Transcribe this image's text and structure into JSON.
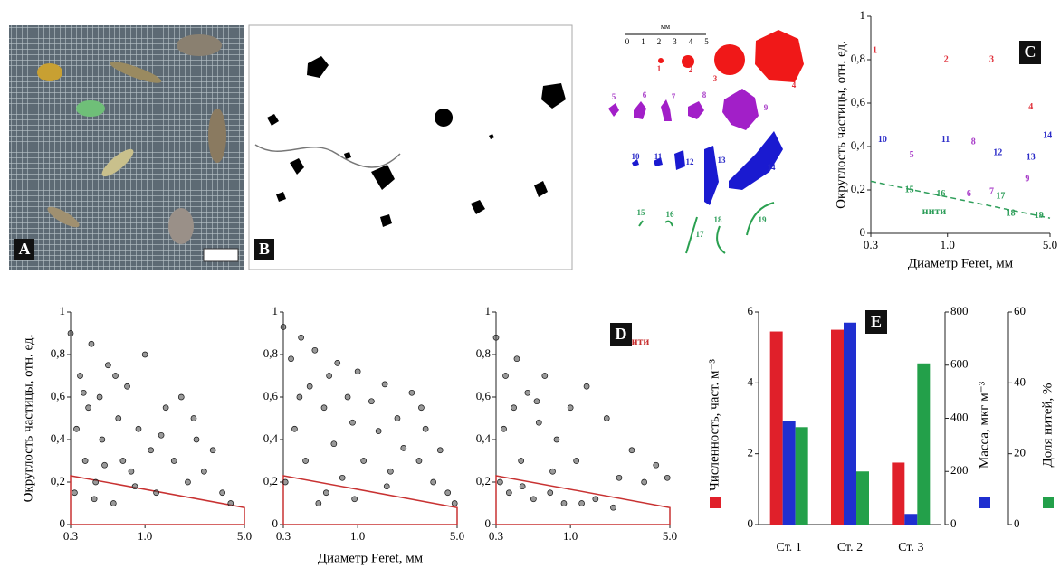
{
  "panels": {
    "photo": "A",
    "binary": "B"
  },
  "particles": {
    "scale_unit": "мм",
    "scale_ticks": [
      "0",
      "1",
      "2",
      "3",
      "4",
      "5"
    ],
    "labels": [
      "1",
      "2",
      "3",
      "4",
      "5",
      "6",
      "7",
      "8",
      "9",
      "10",
      "11",
      "12",
      "13",
      "14",
      "15",
      "16",
      "17",
      "18",
      "19"
    ]
  },
  "chart_data": [
    {
      "type": "scatter",
      "panel": "C",
      "ylabel": "Округлость частицы, отн. ед.",
      "xlabel": "Диаметр Feret, мм",
      "log_x": true,
      "xlim": [
        0.3,
        5
      ],
      "xticks": [
        0.3,
        {
          "value": 1,
          "label": "1.0"
        },
        {
          "value": 5,
          "label": "5.0"
        }
      ],
      "ylim": [
        0,
        1
      ],
      "yticks": [
        0,
        {
          "value": 0.2,
          "label": "0,2"
        },
        {
          "value": 0.4,
          "label": "0,4"
        },
        {
          "value": 0.6,
          "label": "0,6"
        },
        {
          "value": 0.8,
          "label": "0,8"
        },
        1
      ],
      "series": [
        {
          "color": "#e0303a",
          "labels": [
            "1",
            "2",
            "3",
            "4"
          ],
          "x": [
            0.32,
            0.98,
            2.0,
            3.7
          ],
          "y": [
            0.84,
            0.8,
            0.8,
            0.58
          ]
        },
        {
          "color": "#a83cc8",
          "labels": [
            "5",
            "6",
            "7",
            "8",
            "9"
          ],
          "x": [
            0.57,
            1.4,
            2.0,
            1.5,
            3.5
          ],
          "y": [
            0.36,
            0.18,
            0.19,
            0.42,
            0.25
          ]
        },
        {
          "color": "#2a2ac8",
          "labels": [
            "10",
            "11",
            "12",
            "13",
            "14"
          ],
          "x": [
            0.36,
            0.97,
            2.2,
            3.7,
            4.8
          ],
          "y": [
            0.43,
            0.43,
            0.37,
            0.35,
            0.45
          ]
        },
        {
          "color": "#2e9e5a",
          "labels": [
            "15",
            "16",
            "17",
            "18",
            "19"
          ],
          "x": [
            0.55,
            0.9,
            2.3,
            2.7,
            4.2
          ],
          "y": [
            0.2,
            0.18,
            0.17,
            0.09,
            0.08
          ]
        }
      ],
      "threshold": {
        "x": [
          0.3,
          5
        ],
        "y": [
          0.24,
          0.07
        ],
        "color": "#2e9e5a",
        "style": "dashed"
      },
      "annotation": {
        "text": "нити",
        "color": "#2e9e5a"
      }
    },
    {
      "type": "scatter",
      "ylabel": "Округлость частицы, отн. ед.",
      "log_x": true,
      "xlim": [
        0.3,
        5
      ],
      "xticks": [
        0.3,
        {
          "value": 1,
          "label": "1.0"
        },
        {
          "value": 5,
          "label": "5.0"
        }
      ],
      "ylim": [
        0,
        1
      ],
      "yticks": [
        0,
        {
          "value": 0.2,
          "label": "0,2"
        },
        {
          "value": 0.4,
          "label": "0,4"
        },
        {
          "value": 0.6,
          "label": "0,6"
        },
        {
          "value": 0.8,
          "label": "0,8"
        },
        1
      ],
      "series": [
        {
          "color": "#555555",
          "x": [
            0.3,
            0.32,
            0.35,
            0.38,
            0.4,
            0.42,
            0.45,
            0.48,
            0.5,
            0.55,
            0.6,
            0.65,
            0.7,
            0.75,
            0.8,
            0.9,
            1.0,
            1.1,
            1.2,
            1.4,
            1.6,
            1.8,
            2.0,
            2.3,
            2.6,
            3.0,
            3.5,
            4.0,
            0.33,
            0.37,
            0.44,
            0.52,
            0.62,
            0.85,
            1.3,
            2.2
          ],
          "y": [
            0.9,
            0.15,
            0.7,
            0.3,
            0.55,
            0.85,
            0.2,
            0.6,
            0.4,
            0.75,
            0.1,
            0.5,
            0.3,
            0.65,
            0.25,
            0.45,
            0.8,
            0.35,
            0.15,
            0.55,
            0.3,
            0.6,
            0.2,
            0.4,
            0.25,
            0.35,
            0.15,
            0.1,
            0.45,
            0.62,
            0.12,
            0.28,
            0.7,
            0.18,
            0.42,
            0.5
          ]
        }
      ],
      "threshold": {
        "x": [
          0.3,
          5
        ],
        "y": [
          0.23,
          0.08
        ],
        "color": "#c83232",
        "style": "area"
      }
    },
    {
      "type": "scatter",
      "xlabel": "Диаметр Feret, мм",
      "log_x": true,
      "xlim": [
        0.3,
        5
      ],
      "xticks": [
        0.3,
        {
          "value": 1,
          "label": "1.0"
        },
        {
          "value": 5,
          "label": "5.0"
        }
      ],
      "ylim": [
        0,
        1
      ],
      "yticks": [
        0,
        {
          "value": 0.2,
          "label": "0,2"
        },
        {
          "value": 0.4,
          "label": "0,4"
        },
        {
          "value": 0.6,
          "label": "0,6"
        },
        {
          "value": 0.8,
          "label": "0,8"
        },
        1
      ],
      "series": [
        {
          "color": "#555555",
          "x": [
            0.3,
            0.31,
            0.34,
            0.36,
            0.4,
            0.43,
            0.46,
            0.5,
            0.53,
            0.58,
            0.63,
            0.68,
            0.72,
            0.78,
            0.85,
            0.92,
            1.0,
            1.1,
            1.25,
            1.4,
            1.55,
            1.7,
            1.9,
            2.1,
            2.4,
            2.7,
            3.0,
            3.4,
            3.8,
            4.3,
            4.8,
            0.39,
            0.6,
            0.95,
            1.6,
            2.8
          ],
          "y": [
            0.93,
            0.2,
            0.78,
            0.45,
            0.88,
            0.3,
            0.65,
            0.82,
            0.1,
            0.55,
            0.7,
            0.38,
            0.76,
            0.22,
            0.6,
            0.48,
            0.72,
            0.3,
            0.58,
            0.44,
            0.66,
            0.25,
            0.5,
            0.36,
            0.62,
            0.3,
            0.45,
            0.2,
            0.35,
            0.15,
            0.1,
            0.6,
            0.15,
            0.12,
            0.18,
            0.55
          ]
        }
      ],
      "threshold": {
        "x": [
          0.3,
          5
        ],
        "y": [
          0.23,
          0.08
        ],
        "color": "#c83232",
        "style": "area"
      }
    },
    {
      "type": "scatter",
      "panel": "D",
      "log_x": true,
      "xlim": [
        0.3,
        5
      ],
      "xticks": [
        0.3,
        {
          "value": 1,
          "label": "1.0"
        },
        {
          "value": 5,
          "label": "5.0"
        }
      ],
      "ylim": [
        0,
        1
      ],
      "yticks": [
        0,
        {
          "value": 0.2,
          "label": "0,2"
        },
        {
          "value": 0.4,
          "label": "0,4"
        },
        {
          "value": 0.6,
          "label": "0,6"
        },
        {
          "value": 0.8,
          "label": "0,8"
        },
        1
      ],
      "series": [
        {
          "color": "#555555",
          "x": [
            0.3,
            0.32,
            0.35,
            0.37,
            0.4,
            0.42,
            0.46,
            0.5,
            0.55,
            0.6,
            0.66,
            0.72,
            0.8,
            0.9,
            1.0,
            1.1,
            1.3,
            1.5,
            1.8,
            2.2,
            2.7,
            3.3,
            4.0,
            4.8,
            0.34,
            0.45,
            0.58,
            0.75,
            1.2,
            2.0
          ],
          "y": [
            0.88,
            0.2,
            0.7,
            0.15,
            0.55,
            0.78,
            0.18,
            0.62,
            0.12,
            0.48,
            0.7,
            0.15,
            0.4,
            0.1,
            0.55,
            0.3,
            0.65,
            0.12,
            0.5,
            0.22,
            0.35,
            0.2,
            0.28,
            0.22,
            0.45,
            0.3,
            0.58,
            0.25,
            0.1,
            0.08
          ]
        }
      ],
      "threshold": {
        "x": [
          0.3,
          5
        ],
        "y": [
          0.23,
          0.08
        ],
        "color": "#c83232",
        "style": "area"
      },
      "annotation": {
        "text": "нити",
        "color": "#c83232"
      }
    },
    {
      "type": "bar",
      "panel": "E",
      "categories": [
        "Ст. 1",
        "Ст. 2",
        "Ст. 3"
      ],
      "ylim": [
        0,
        6
      ],
      "yticks": [
        0,
        2,
        4,
        6
      ],
      "y2lim": [
        0,
        800
      ],
      "y2ticks": [
        0,
        200,
        400,
        600,
        800
      ],
      "y3lim": [
        0,
        60
      ],
      "y3ticks": [
        0,
        20,
        40,
        60
      ],
      "series": [
        {
          "name": "Численность, част. м⁻³",
          "color": "#e0202a",
          "values": [
            5.45,
            5.5,
            1.75
          ]
        },
        {
          "name": "Масса, мкг м⁻³",
          "color": "#1f2fd0",
          "axis": "y2",
          "values": [
            390,
            760,
            40
          ]
        },
        {
          "name": "Доля нитей, %",
          "color": "#23a04a",
          "axis": "y3",
          "values": [
            27.5,
            15,
            45.5
          ]
        }
      ]
    }
  ]
}
